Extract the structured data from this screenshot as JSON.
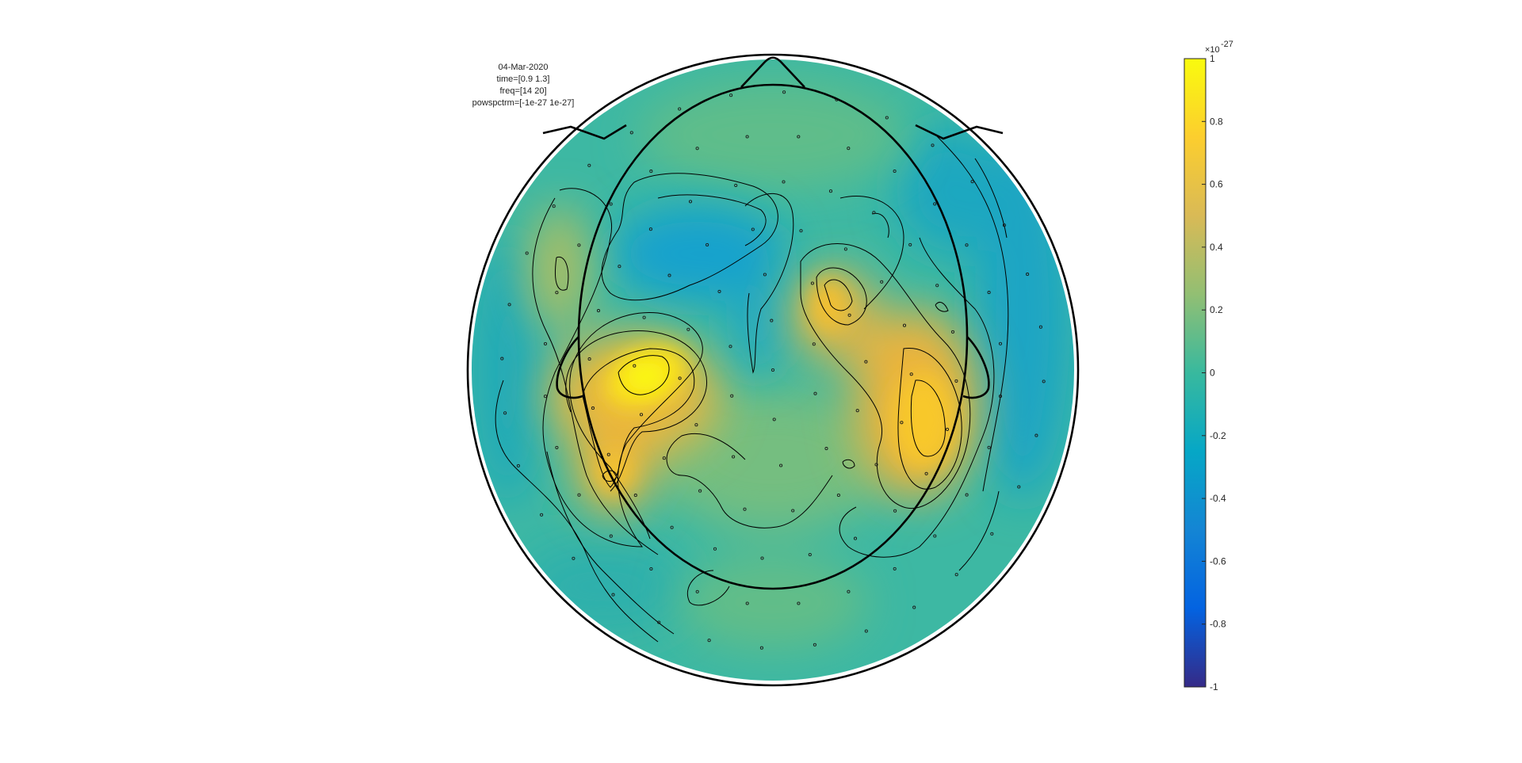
{
  "info": {
    "date": "04-Mar-2020",
    "time": "time=[0.9 1.3]",
    "freq": "freq=[14 20]",
    "powspctrm": "powspctrm=[-1e-27 1e-27]"
  },
  "colorbar": {
    "exponent_base": "×10",
    "exponent_power": "-27",
    "range": [
      -1,
      1
    ],
    "ticks": [
      "1",
      "0.8",
      "0.6",
      "0.4",
      "0.2",
      "0",
      "-0.2",
      "-0.4",
      "-0.6",
      "-0.8",
      "-1"
    ],
    "colormap": "parula"
  },
  "chart_data": {
    "type": "heatmap",
    "subtype": "topoplot",
    "colormap": "parula",
    "clim": [
      -1e-27,
      1e-27
    ],
    "parameter": "powspctrm",
    "time_window": [
      0.9,
      1.3
    ],
    "freq_band": [
      14,
      20
    ],
    "blobs": [
      {
        "region": "left-central",
        "value": 0.95
      },
      {
        "region": "left-parietal",
        "value": 0.6
      },
      {
        "region": "right-central",
        "value": 0.65
      },
      {
        "region": "right-parietal-lateral",
        "value": 0.6
      },
      {
        "region": "frontal-midline",
        "value": -0.2
      },
      {
        "region": "left-frontal-lateral",
        "value": 0.4
      },
      {
        "region": "right-frontal",
        "value": 0.5
      }
    ],
    "colors": {
      "outline": "#000000",
      "background": "#ffffff"
    }
  }
}
